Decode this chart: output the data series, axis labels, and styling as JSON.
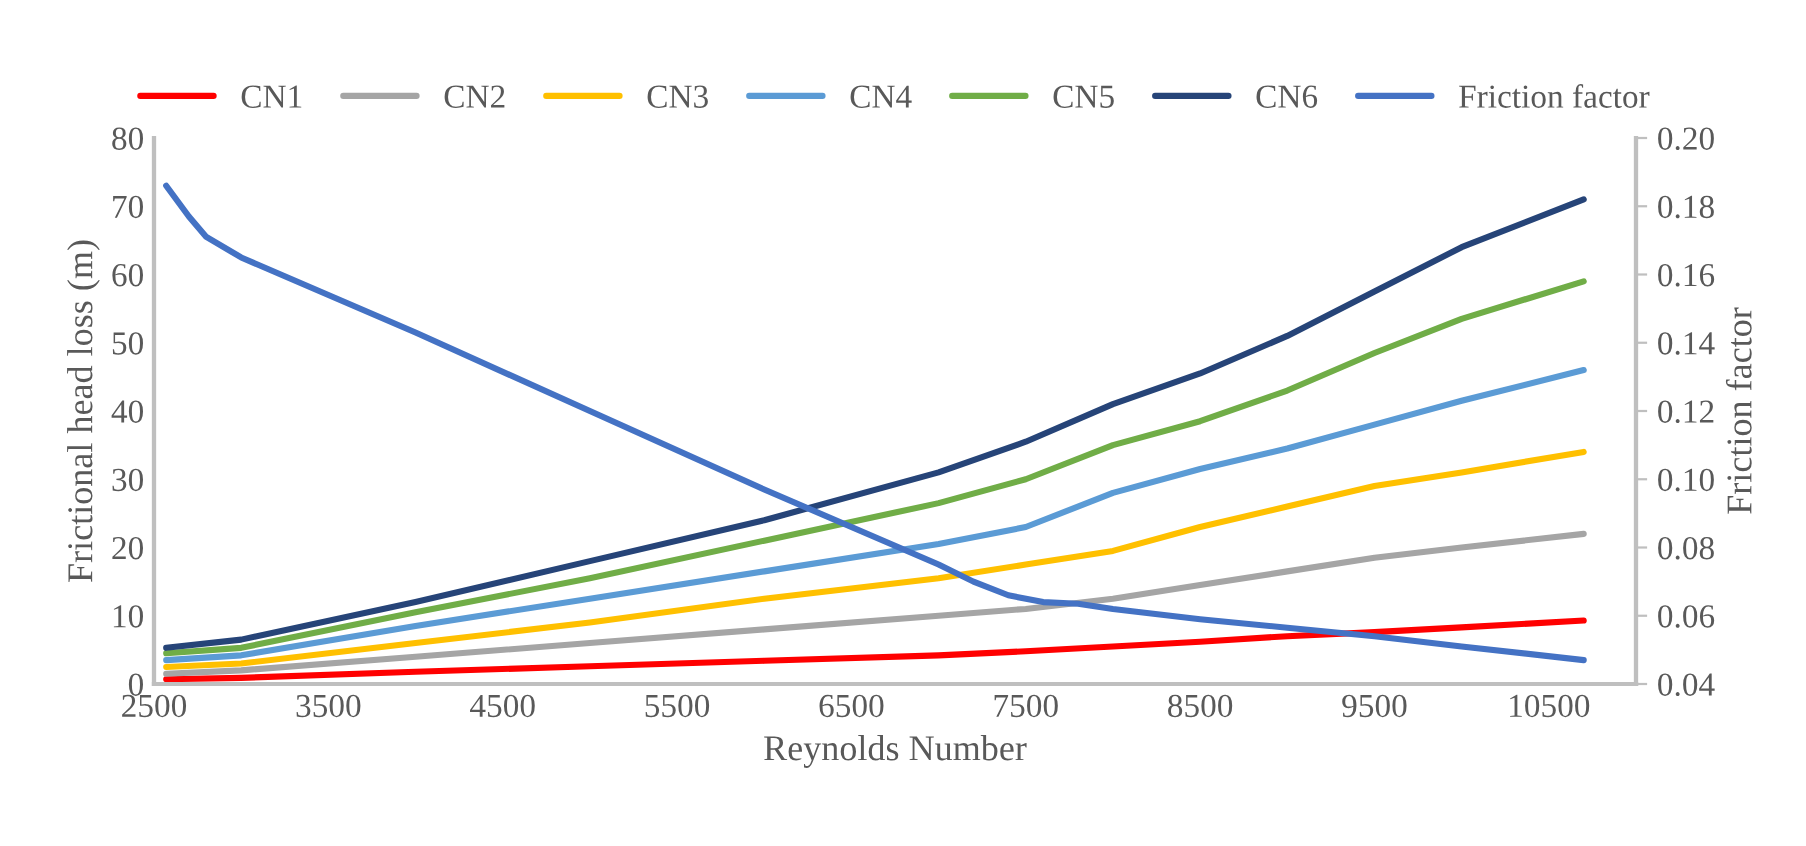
{
  "chart_data": {
    "type": "line",
    "xlabel": "Reynolds Number",
    "ylabel": "Frictional head loss (m)",
    "y2label": "Friction factor",
    "x": [
      2570,
      3000,
      4000,
      5000,
      6000,
      7000,
      7500,
      8000,
      8500,
      9000,
      9500,
      10000,
      10700
    ],
    "xlim": [
      2500,
      11000
    ],
    "xticks": [
      2500,
      3500,
      4500,
      5500,
      6500,
      7500,
      8500,
      9500,
      10500
    ],
    "ylim": [
      0,
      80
    ],
    "yticks": [
      0,
      10,
      20,
      30,
      40,
      50,
      60,
      70,
      80
    ],
    "y2lim": [
      0.04,
      0.2
    ],
    "y2ticks": [
      {
        "value": 0.04,
        "label": "0.04"
      },
      {
        "value": 0.06,
        "label": "0.06"
      },
      {
        "value": 0.08,
        "label": "0.08"
      },
      {
        "value": 0.1,
        "label": "0.10"
      },
      {
        "value": 0.12,
        "label": "0.12"
      },
      {
        "value": 0.14,
        "label": "0.14"
      },
      {
        "value": 0.16,
        "label": "0.16"
      },
      {
        "value": 0.18,
        "label": "0.18"
      },
      {
        "value": 0.2,
        "label": "0.20"
      }
    ],
    "grid": false,
    "legend": "top",
    "marker": "none",
    "line_style": "solid",
    "series": [
      {
        "name": "CN1",
        "color": "#ff0000",
        "values": [
          0.7,
          0.9,
          1.8,
          2.6,
          3.4,
          4.2,
          4.8,
          5.5,
          6.2,
          7.0,
          7.6,
          8.3,
          9.3
        ]
      },
      {
        "name": "CN2",
        "color": "#a5a5a5",
        "values": [
          1.5,
          2.0,
          4.0,
          6.0,
          8.0,
          10.0,
          11.0,
          12.5,
          14.5,
          16.5,
          18.5,
          20.0,
          22.0
        ]
      },
      {
        "name": "CN3",
        "color": "#ffc000",
        "values": [
          2.5,
          3.0,
          6.0,
          9.0,
          12.5,
          15.5,
          17.5,
          19.5,
          23.0,
          26.0,
          29.0,
          31.0,
          34.0
        ]
      },
      {
        "name": "CN4",
        "color": "#5b9bd5",
        "values": [
          3.5,
          4.2,
          8.5,
          12.5,
          16.5,
          20.5,
          23.0,
          28.0,
          31.5,
          34.5,
          38.0,
          41.5,
          46.0
        ]
      },
      {
        "name": "CN5",
        "color": "#70ad47",
        "values": [
          4.5,
          5.3,
          10.5,
          15.5,
          21.0,
          26.5,
          30.0,
          35.0,
          38.5,
          43.0,
          48.5,
          53.5,
          59.0
        ]
      },
      {
        "name": "CN6",
        "color": "#264478",
        "values": [
          5.3,
          6.5,
          12.0,
          18.0,
          24.0,
          31.0,
          35.5,
          41.0,
          45.5,
          51.0,
          57.5,
          64.0,
          71.0
        ]
      },
      {
        "name": "Friction factor",
        "color": "#4472c4",
        "axis": "y2",
        "x": [
          2570,
          2700,
          2800,
          3000,
          4000,
          5000,
          6000,
          7000,
          7200,
          7400,
          7600,
          7800,
          8000,
          8500,
          9000,
          9500,
          10000,
          10700
        ],
        "values": [
          0.186,
          0.177,
          0.171,
          0.165,
          0.143,
          0.12,
          0.097,
          0.075,
          0.07,
          0.066,
          0.064,
          0.0635,
          0.062,
          0.059,
          0.0565,
          0.054,
          0.051,
          0.047
        ]
      }
    ]
  }
}
